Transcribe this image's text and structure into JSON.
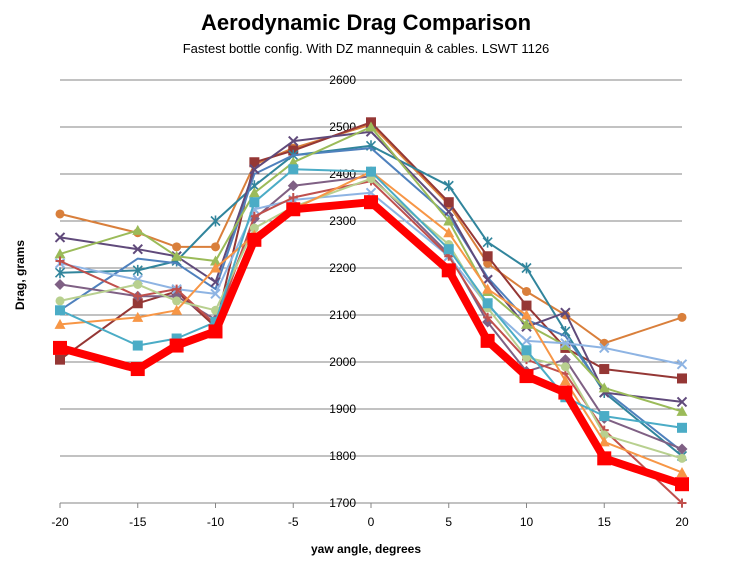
{
  "chart_data": {
    "type": "line",
    "title": "Aerodynamic Drag Comparison",
    "subtitle": "Fastest bottle config. With DZ mannequin & cables.  LSWT 1126",
    "xlabel": "yaw angle, degrees",
    "ylabel": "Drag, grams",
    "x": [
      -20,
      -15,
      -12.5,
      -10,
      -7.5,
      -5,
      0,
      5,
      7.5,
      10,
      12.5,
      15,
      20
    ],
    "x_ticks": [
      "-20",
      "-15",
      "-10",
      "-5",
      "0",
      "5",
      "10",
      "15",
      "20"
    ],
    "x_tick_values": [
      -20,
      -15,
      -10,
      -5,
      0,
      5,
      10,
      15,
      20
    ],
    "y_ticks": [
      "1700",
      "1800",
      "1900",
      "2000",
      "2100",
      "2200",
      "2300",
      "2400",
      "2500",
      "2600"
    ],
    "ylim": [
      1700,
      2600
    ],
    "xlim": [
      -20,
      20
    ],
    "grid": "horizontal",
    "legend": "none",
    "series": [
      {
        "color": "#d97f3b",
        "marker": "circle",
        "width": 2,
        "values": [
          2315,
          2275,
          2245,
          2245,
          2420,
          2455,
          2505,
          2335,
          2210,
          2150,
          2100,
          2040,
          2095
        ]
      },
      {
        "color": "#953735",
        "marker": "square",
        "width": 2,
        "values": [
          2005,
          2125,
          2150,
          2075,
          2425,
          2450,
          2510,
          2340,
          2225,
          2120,
          2030,
          1985,
          1965
        ]
      },
      {
        "color": "#31859c",
        "marker": "star",
        "width": 2,
        "values": [
          2190,
          2195,
          2215,
          2300,
          2375,
          2440,
          2460,
          2375,
          2255,
          2200,
          2065,
          1935,
          1800
        ]
      },
      {
        "color": "#4f81bd",
        "marker": "none",
        "width": 2,
        "values": [
          2110,
          2220,
          2210,
          2155,
          2400,
          2440,
          2455,
          2310,
          2180,
          2090,
          2055,
          1940,
          1810
        ]
      },
      {
        "color": "#604a7b",
        "marker": "x",
        "width": 2,
        "values": [
          2265,
          2240,
          2225,
          2170,
          2410,
          2470,
          2490,
          2320,
          2175,
          2075,
          2105,
          1935,
          1915
        ]
      },
      {
        "color": "#9bbb59",
        "marker": "triangle",
        "width": 2,
        "values": [
          2230,
          2280,
          2225,
          2215,
          2360,
          2425,
          2500,
          2300,
          2150,
          2080,
          2035,
          1945,
          1895
        ]
      },
      {
        "color": "#7f6084",
        "marker": "diamond",
        "width": 2,
        "values": [
          2165,
          2140,
          2140,
          2090,
          2305,
          2375,
          2395,
          2230,
          2085,
          1980,
          2005,
          1880,
          1815
        ]
      },
      {
        "color": "#8eb4e3",
        "marker": "x",
        "width": 2,
        "values": [
          2210,
          2175,
          2155,
          2145,
          2325,
          2345,
          2360,
          2225,
          2120,
          2045,
          2040,
          2030,
          1995
        ]
      },
      {
        "color": "#c0504d",
        "marker": "plus",
        "width": 2,
        "values": [
          2215,
          2140,
          2155,
          2080,
          2310,
          2350,
          2385,
          2225,
          2095,
          2005,
          1975,
          1855,
          1700
        ]
      },
      {
        "color": "#b8d08f",
        "marker": "circle",
        "width": 2,
        "values": [
          2130,
          2165,
          2130,
          2110,
          2285,
          2330,
          2390,
          2250,
          2115,
          2010,
          1990,
          1845,
          1795
        ]
      },
      {
        "color": "#f79646",
        "marker": "triangle",
        "width": 2,
        "values": [
          2080,
          2095,
          2110,
          2200,
          2270,
          2325,
          2405,
          2275,
          2155,
          2100,
          1960,
          1830,
          1765
        ]
      },
      {
        "color": "#4bacc6",
        "marker": "square",
        "width": 2,
        "values": [
          2110,
          2035,
          2050,
          2085,
          2340,
          2410,
          2405,
          2240,
          2125,
          2025,
          1925,
          1885,
          1860
        ]
      },
      {
        "color": "#ff0000",
        "marker": "square",
        "width": 8,
        "values": [
          2030,
          1985,
          2035,
          2065,
          2260,
          2325,
          2340,
          2195,
          2045,
          1970,
          1935,
          1795,
          1740
        ]
      }
    ]
  }
}
